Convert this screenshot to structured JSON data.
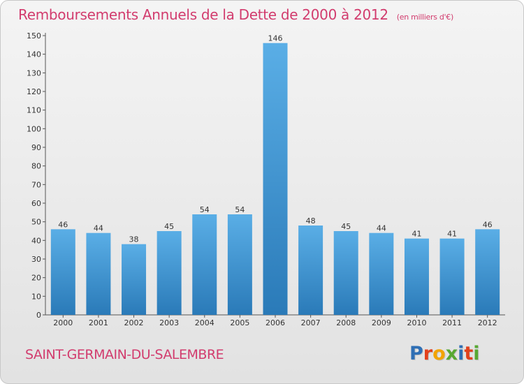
{
  "title": "Remboursements Annuels de la Dette de 2000 à 2012",
  "subtitle": "(en milliers d'€)",
  "commune": "SAINT-GERMAIN-DU-SALEMBRE",
  "logo": {
    "letters": [
      "P",
      "r",
      "o",
      "x",
      "i",
      "t",
      "i"
    ],
    "colors": [
      "#2f6fb5",
      "#e2401c",
      "#f2a400",
      "#57a832",
      "#2f6fb5",
      "#e2401c",
      "#57a832"
    ]
  },
  "colors": {
    "bar_top": "#5aaee6",
    "bar_bottom": "#2a7ab8",
    "accent": "#d23c6e"
  },
  "chart_data": {
    "type": "bar",
    "categories": [
      "2000",
      "2001",
      "2002",
      "2003",
      "2004",
      "2005",
      "2006",
      "2007",
      "2008",
      "2009",
      "2010",
      "2011",
      "2012"
    ],
    "values": [
      46,
      44,
      38,
      45,
      54,
      54,
      146,
      48,
      45,
      44,
      41,
      41,
      46
    ],
    "value_labels": [
      "46",
      "44",
      "38",
      "45",
      "54",
      "54",
      "146",
      "48",
      "45",
      "44",
      "41",
      "41",
      "46"
    ],
    "ylim": [
      0,
      150
    ],
    "yticks": [
      0,
      10,
      20,
      30,
      40,
      50,
      60,
      70,
      80,
      90,
      100,
      110,
      120,
      130,
      140,
      150
    ],
    "grid": false,
    "legend": "none"
  }
}
